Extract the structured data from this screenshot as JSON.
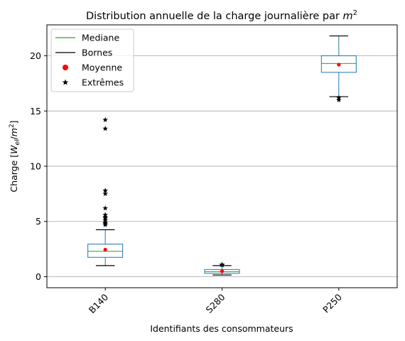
{
  "chart_data": {
    "type": "boxplot",
    "title": "Distribution annuelle de la charge journalière par m²",
    "title_main": "Distribution annuelle de la charge journalière par ",
    "title_var": "m",
    "title_sup": "2",
    "xlabel": "Identifiants des consommateurs",
    "ylabel": "Charge [W_el/m²]",
    "ylabel_prefix": "Charge [",
    "ylabel_var": "W",
    "ylabel_sub": "el",
    "ylabel_slash": "/",
    "ylabel_var2": "m",
    "ylabel_sup": "2",
    "ylabel_suffix": "]",
    "ylim": [
      -1.0,
      22.8
    ],
    "yticks": [
      0,
      5,
      10,
      15,
      20
    ],
    "grid": "horizontal",
    "legend_position": "top-left",
    "legend": [
      {
        "label": "Mediane",
        "kind": "line",
        "color": "#2ca02c"
      },
      {
        "label": "Bornes",
        "kind": "line",
        "color": "#000000"
      },
      {
        "label": "Moyenne",
        "kind": "dot",
        "color": "#ff0000"
      },
      {
        "label": "Extrêmes",
        "kind": "star",
        "color": "#000000"
      }
    ],
    "box_color": "#1f77b4",
    "median_color": "#2ca02c",
    "mean_color": "#ff0000",
    "categories": [
      "B140",
      "S280",
      "P250"
    ],
    "boxes": [
      {
        "name": "B140",
        "whislo": 1.0,
        "q1": 1.75,
        "med": 2.3,
        "q3": 2.95,
        "whishi": 4.25,
        "mean": 2.45,
        "fliers": [
          14.2,
          13.4,
          7.8,
          7.5,
          6.2,
          5.6,
          5.4,
          5.3,
          5.1,
          4.9,
          4.8,
          4.7
        ]
      },
      {
        "name": "S280",
        "whislo": 0.15,
        "q1": 0.3,
        "med": 0.45,
        "q3": 0.65,
        "whishi": 1.0,
        "mean": 0.5,
        "fliers": [
          1.1,
          1.05
        ]
      },
      {
        "name": "P250",
        "whislo": 16.3,
        "q1": 18.5,
        "med": 19.3,
        "q3": 20.0,
        "whishi": 21.8,
        "mean": 19.2,
        "fliers": [
          16.2,
          16.0
        ]
      }
    ]
  }
}
